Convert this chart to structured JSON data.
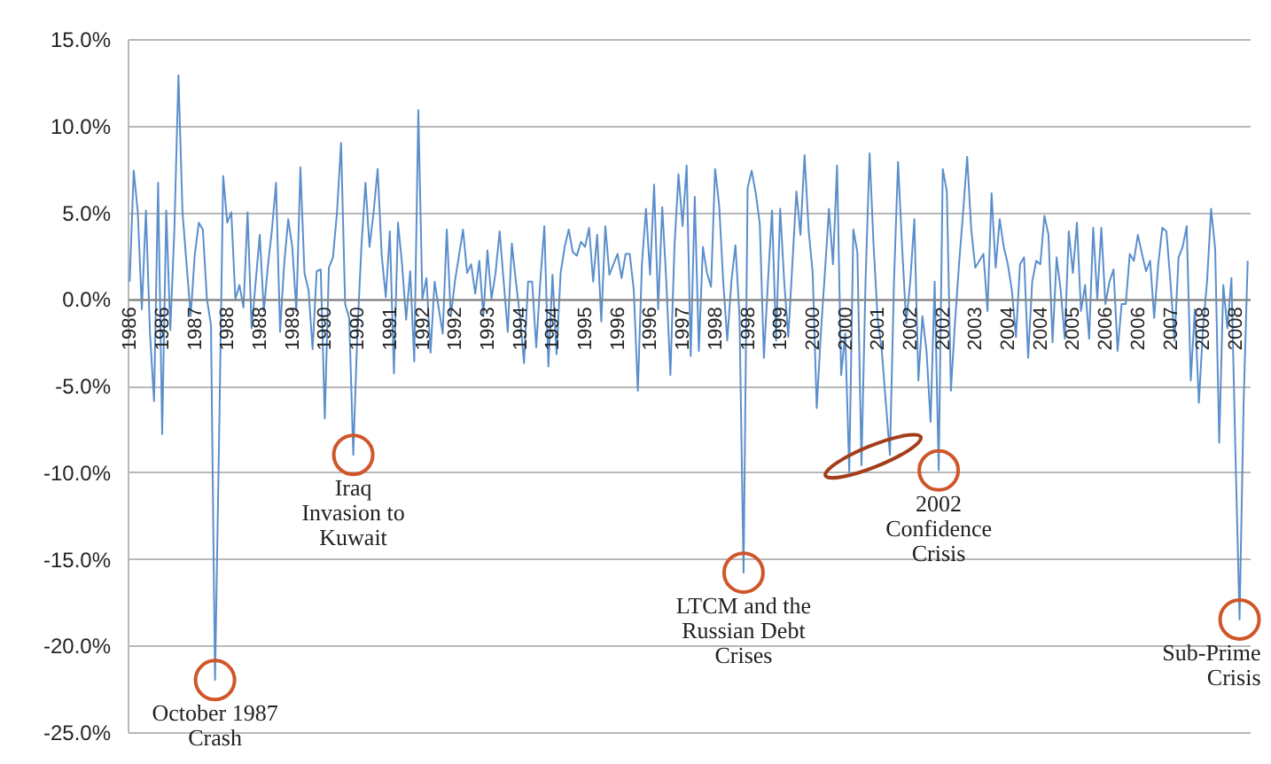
{
  "chart_data": {
    "type": "line",
    "categories": [
      "1986",
      null,
      null,
      null,
      null,
      null,
      null,
      null,
      "1986",
      null,
      null,
      null,
      null,
      null,
      null,
      null,
      "1987",
      null,
      null,
      null,
      null,
      null,
      null,
      null,
      "1988",
      null,
      null,
      null,
      null,
      null,
      null,
      null,
      "1988",
      null,
      null,
      null,
      null,
      null,
      null,
      null,
      "1989",
      null,
      null,
      null,
      null,
      null,
      null,
      null,
      "1990",
      null,
      null,
      null,
      null,
      null,
      null,
      null,
      "1990",
      null,
      null,
      null,
      null,
      null,
      null,
      null,
      "1991",
      null,
      null,
      null,
      null,
      null,
      null,
      null,
      "1992",
      null,
      null,
      null,
      null,
      null,
      null,
      null,
      "1992",
      null,
      null,
      null,
      null,
      null,
      null,
      null,
      "1993",
      null,
      null,
      null,
      null,
      null,
      null,
      null,
      "1994",
      null,
      null,
      null,
      null,
      null,
      null,
      null,
      "1994",
      null,
      null,
      null,
      null,
      null,
      null,
      null,
      "1995",
      null,
      null,
      null,
      null,
      null,
      null,
      null,
      "1996",
      null,
      null,
      null,
      null,
      null,
      null,
      null,
      "1996",
      null,
      null,
      null,
      null,
      null,
      null,
      null,
      "1997",
      null,
      null,
      null,
      null,
      null,
      null,
      null,
      "1998",
      null,
      null,
      null,
      null,
      null,
      null,
      null,
      "1998",
      null,
      null,
      null,
      null,
      null,
      null,
      null,
      "1999",
      null,
      null,
      null,
      null,
      null,
      null,
      null,
      "2000",
      null,
      null,
      null,
      null,
      null,
      null,
      null,
      "2000",
      null,
      null,
      null,
      null,
      null,
      null,
      null,
      "2001",
      null,
      null,
      null,
      null,
      null,
      null,
      null,
      "2002",
      null,
      null,
      null,
      null,
      null,
      null,
      null,
      "2002",
      null,
      null,
      null,
      null,
      null,
      null,
      null,
      "2003",
      null,
      null,
      null,
      null,
      null,
      null,
      null,
      "2004",
      null,
      null,
      null,
      null,
      null,
      null,
      null,
      "2004",
      null,
      null,
      null,
      null,
      null,
      null,
      null,
      "2005",
      null,
      null,
      null,
      null,
      null,
      null,
      null,
      "2006",
      null,
      null,
      null,
      null,
      null,
      null,
      null,
      "2006",
      null,
      null,
      null,
      null,
      null,
      null,
      null,
      "2007",
      null,
      null,
      null,
      null,
      null,
      null,
      null,
      "2008",
      null,
      null,
      null,
      null,
      null,
      null,
      null,
      "2008",
      null,
      null,
      null
    ],
    "values": [
      1.0,
      7.4,
      5.0,
      -0.6,
      5.1,
      -2.0,
      -5.9,
      6.7,
      -7.8,
      5.1,
      -1.8,
      4.0,
      12.9,
      5.0,
      2.0,
      -1.0,
      2.5,
      4.4,
      4.0,
      0.0,
      -1.5,
      -22.0,
      -8.0,
      7.1,
      4.4,
      5.0,
      0.0,
      0.8,
      -0.5,
      5.0,
      -1.7,
      1.0,
      3.7,
      -0.7,
      1.9,
      4.0,
      6.7,
      -1.9,
      2.0,
      4.6,
      3.0,
      -0.7,
      7.6,
      1.5,
      0.5,
      -2.9,
      1.6,
      1.7,
      -6.9,
      1.8,
      2.4,
      5.0,
      9.0,
      -0.3,
      -1.1,
      -9.0,
      -2.0,
      3.0,
      6.7,
      3.0,
      5.0,
      7.5,
      2.5,
      0.1,
      3.9,
      -4.3,
      4.4,
      2.0,
      -1.2,
      1.6,
      -3.6,
      10.9,
      0.0,
      1.2,
      -3.1,
      1.0,
      -0.5,
      -2.0,
      4.0,
      -1.0,
      1.0,
      2.5,
      4.0,
      1.5,
      2.0,
      0.3,
      2.2,
      -1.0,
      2.8,
      0.0,
      1.5,
      3.9,
      1.0,
      -1.9,
      3.2,
      1.0,
      -1.0,
      -3.7,
      1.0,
      1.0,
      -2.8,
      1.0,
      4.2,
      -3.9,
      1.4,
      -3.2,
      1.5,
      3.0,
      4.0,
      2.7,
      2.5,
      3.3,
      3.0,
      4.1,
      1.0,
      3.7,
      -1.3,
      4.2,
      1.4,
      2.0,
      2.6,
      1.2,
      2.6,
      2.6,
      0.5,
      -5.3,
      2.0,
      5.2,
      1.4,
      6.6,
      -0.6,
      5.3,
      1.0,
      -4.4,
      3.0,
      7.2,
      4.2,
      7.7,
      -3.3,
      5.9,
      -3.0,
      3.0,
      1.5,
      0.7,
      7.5,
      5.4,
      1.0,
      -2.4,
      1.0,
      3.1,
      -1.0,
      -15.8,
      6.4,
      7.4,
      6.1,
      4.3,
      -3.4,
      1.0,
      5.1,
      -2.4,
      5.2,
      1.0,
      -2.2,
      2.0,
      6.2,
      3.7,
      8.3,
      4.0,
      1.5,
      -6.3,
      -2.0,
      1.5,
      5.2,
      2.0,
      7.7,
      -4.4,
      -2.0,
      -10.0,
      4.0,
      2.7,
      -9.6,
      1.0,
      8.4,
      3.0,
      -1.2,
      -3.0,
      -6.0,
      -9.0,
      1.0,
      7.9,
      3.0,
      -1.4,
      1.0,
      4.6,
      -4.7,
      -1.0,
      -3.0,
      -7.1,
      1.0,
      -9.9,
      7.5,
      6.2,
      -5.3,
      -1.4,
      2.0,
      5.0,
      8.2,
      4.0,
      1.8,
      2.2,
      2.6,
      -0.7,
      6.1,
      1.8,
      4.6,
      3.0,
      2.0,
      0.5,
      -2.2,
      2.0,
      2.4,
      -3.4,
      1.0,
      2.2,
      2.0,
      4.8,
      3.7,
      -2.5,
      2.4,
      0.5,
      -2.3,
      3.9,
      1.5,
      4.4,
      -0.7,
      0.8,
      -2.3,
      4.1,
      0.0,
      4.1,
      -0.3,
      1.0,
      1.7,
      -3.0,
      -0.3,
      -0.3,
      2.6,
      2.2,
      3.7,
      2.6,
      1.6,
      2.2,
      -1.1,
      2.0,
      4.1,
      3.9,
      1.0,
      -2.4,
      2.4,
      3.0,
      4.2,
      -4.7,
      -0.6,
      -6.0,
      -1.7,
      1.0,
      5.2,
      2.9,
      -8.3,
      0.8,
      -1.7,
      1.2,
      -9.0,
      -18.5,
      -6.0,
      2.2
    ],
    "color": "#5b8fcc",
    "ylim": [
      -25,
      15
    ],
    "yticks": [
      {
        "value": -25,
        "label": "-25.0%"
      },
      {
        "value": -20,
        "label": "-20.0%"
      },
      {
        "value": -15,
        "label": "-15.0%"
      },
      {
        "value": -10,
        "label": "-10.0%"
      },
      {
        "value": -5,
        "label": "-5.0%"
      },
      {
        "value": 0,
        "label": "0.0%"
      },
      {
        "value": 5,
        "label": "5.0%"
      },
      {
        "value": 10,
        "label": "10.0%"
      },
      {
        "value": 15,
        "label": "15.0%"
      }
    ],
    "grid": "y",
    "annotations": [
      {
        "text": "October 1987 Crash",
        "y": -22.0
      },
      {
        "text": "Iraq Invasion to Kuwait",
        "y": -9.0
      },
      {
        "text": "LTCM and the Russian Debt Crises",
        "y": -15.8
      },
      {
        "text": "2002 Confidence Crisis",
        "y": -9.9
      },
      {
        "text": "Sub-Prime Crisis",
        "y": -18.5
      }
    ]
  }
}
